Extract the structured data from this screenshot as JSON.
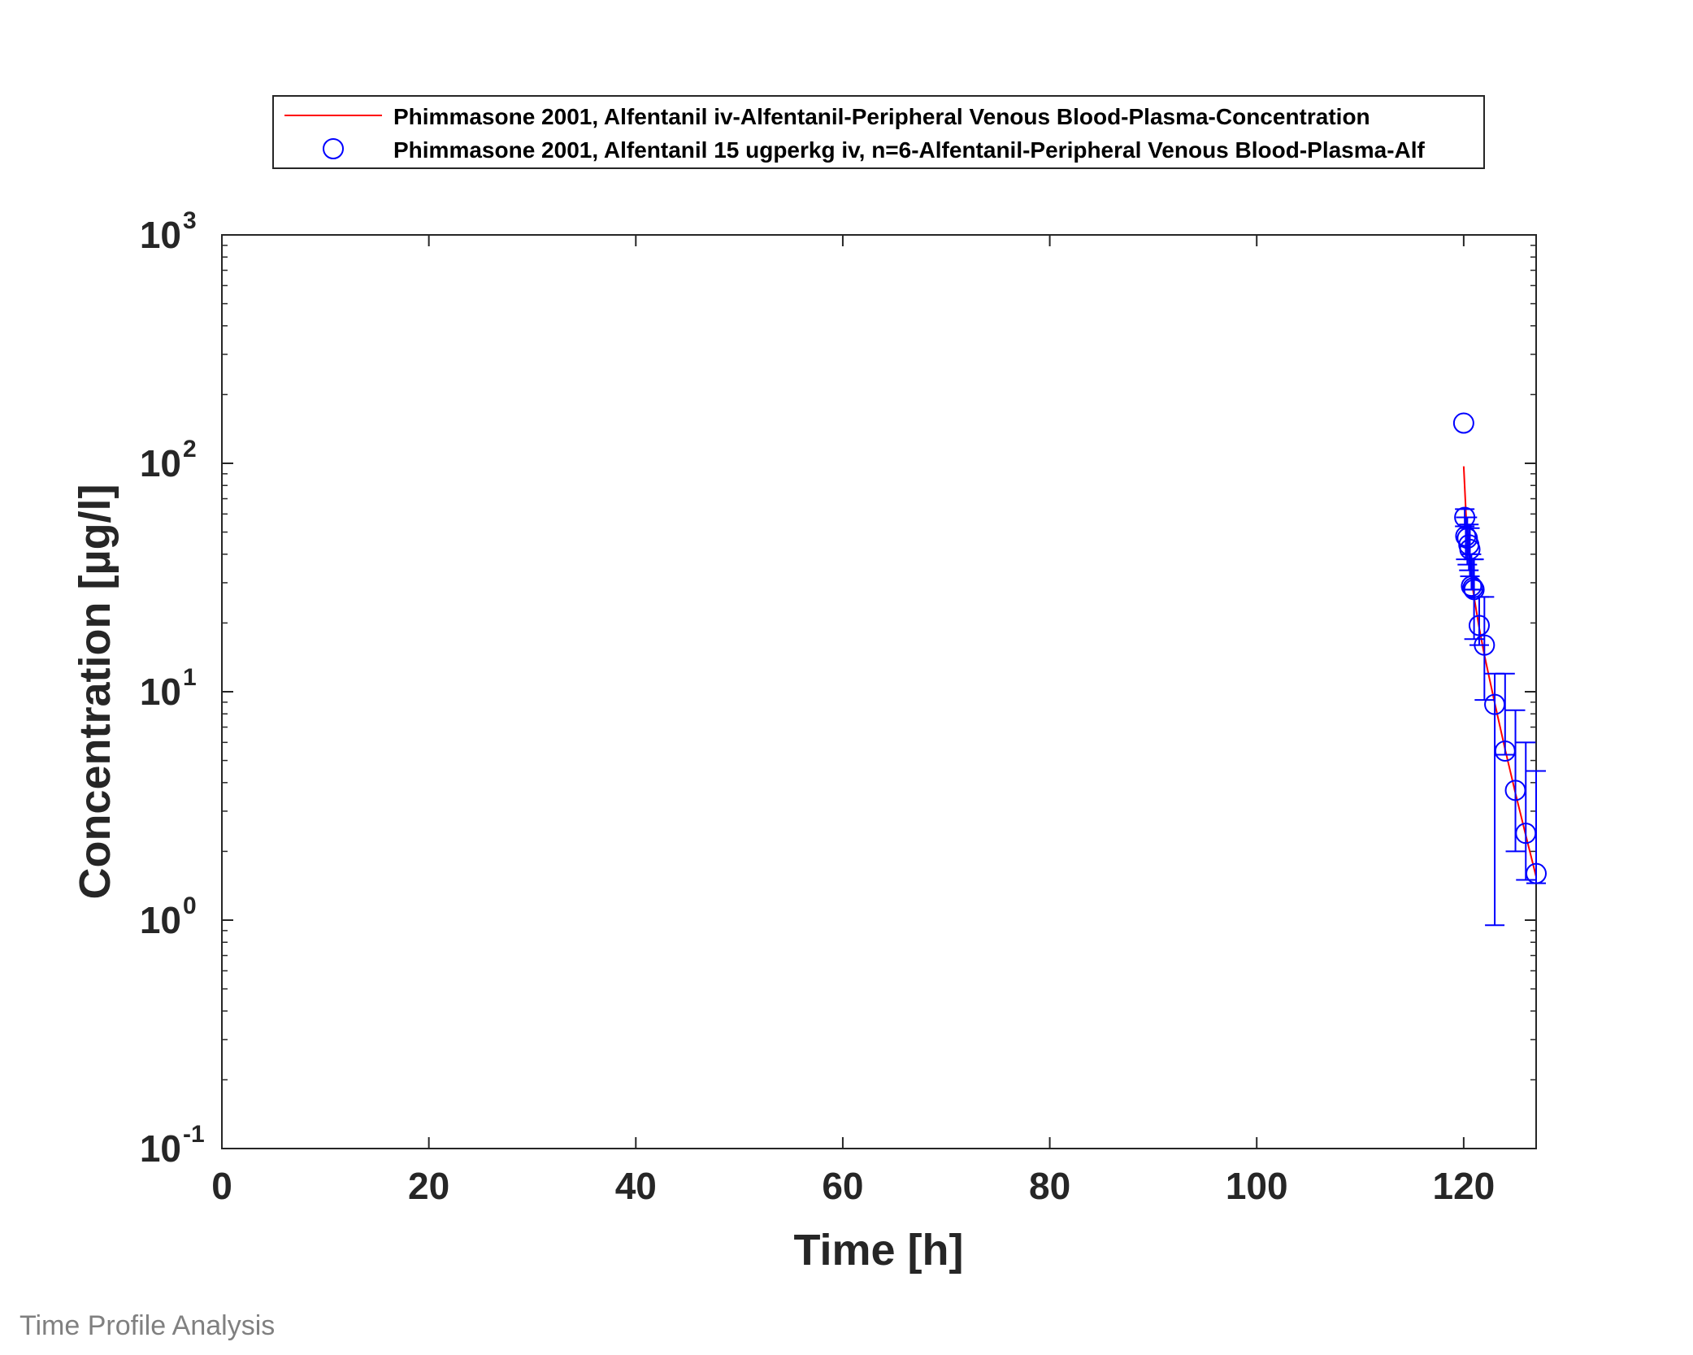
{
  "chart_data": {
    "type": "scatter",
    "xlabel": "Time [h]",
    "ylabel": "Concentration [µg/l]",
    "xlim": [
      0,
      127
    ],
    "ylim": [
      0.1,
      1000
    ],
    "yscale": "log",
    "grid": false,
    "legend_position": "top (outside, above plot)",
    "x_ticks": [
      0,
      20,
      40,
      60,
      80,
      100,
      120
    ],
    "y_ticks": [
      {
        "value": 0.1,
        "base": "10",
        "exp": "-1"
      },
      {
        "value": 1,
        "base": "10",
        "exp": "0"
      },
      {
        "value": 10,
        "base": "10",
        "exp": "1"
      },
      {
        "value": 100,
        "base": "10",
        "exp": "2"
      },
      {
        "value": 1000,
        "base": "10",
        "exp": "3"
      }
    ],
    "series": [
      {
        "name": "Phimmasone 2001, Alfentanil iv-Alfentanil-Peripheral Venous Blood-Plasma-Concentration",
        "kind": "line",
        "color": "#ff0000",
        "x": [
          120.0,
          120.25,
          120.5,
          120.75,
          121.0,
          121.5,
          122.0,
          123.0,
          124.0,
          125.0,
          126.0,
          127.0
        ],
        "y": [
          97,
          56,
          40,
          31,
          26,
          19,
          14.5,
          8.9,
          5.6,
          3.6,
          2.35,
          1.55
        ]
      },
      {
        "name": "Phimmasone 2001, Alfentanil 15 ugperkg iv, n=6-Alfentanil-Peripheral Venous Blood-Plasma-Alf",
        "kind": "markers",
        "marker": "circle",
        "color": "#0000ff",
        "x": [
          120.0,
          120.1,
          120.2,
          120.35,
          120.5,
          120.6,
          120.75,
          120.9,
          121.0,
          121.5,
          122.0,
          123.0,
          124.0,
          125.0,
          126.0,
          127.0
        ],
        "y": [
          150,
          58,
          48,
          47,
          44,
          42,
          29,
          28.5,
          28,
          19.5,
          16,
          8.8,
          5.5,
          3.7,
          2.4,
          1.6
        ],
        "error_low": [
          150,
          53,
          38,
          36,
          34,
          32,
          28,
          28,
          17,
          16,
          9.2,
          0.95,
          5.3,
          2.0,
          1.5,
          1.45
        ],
        "error_high": [
          150,
          63,
          58,
          58,
          54,
          52,
          40,
          38,
          38,
          26,
          26,
          12,
          12,
          8.3,
          6.0,
          4.5
        ]
      }
    ]
  },
  "footer": {
    "text": "Time Profile Analysis"
  }
}
